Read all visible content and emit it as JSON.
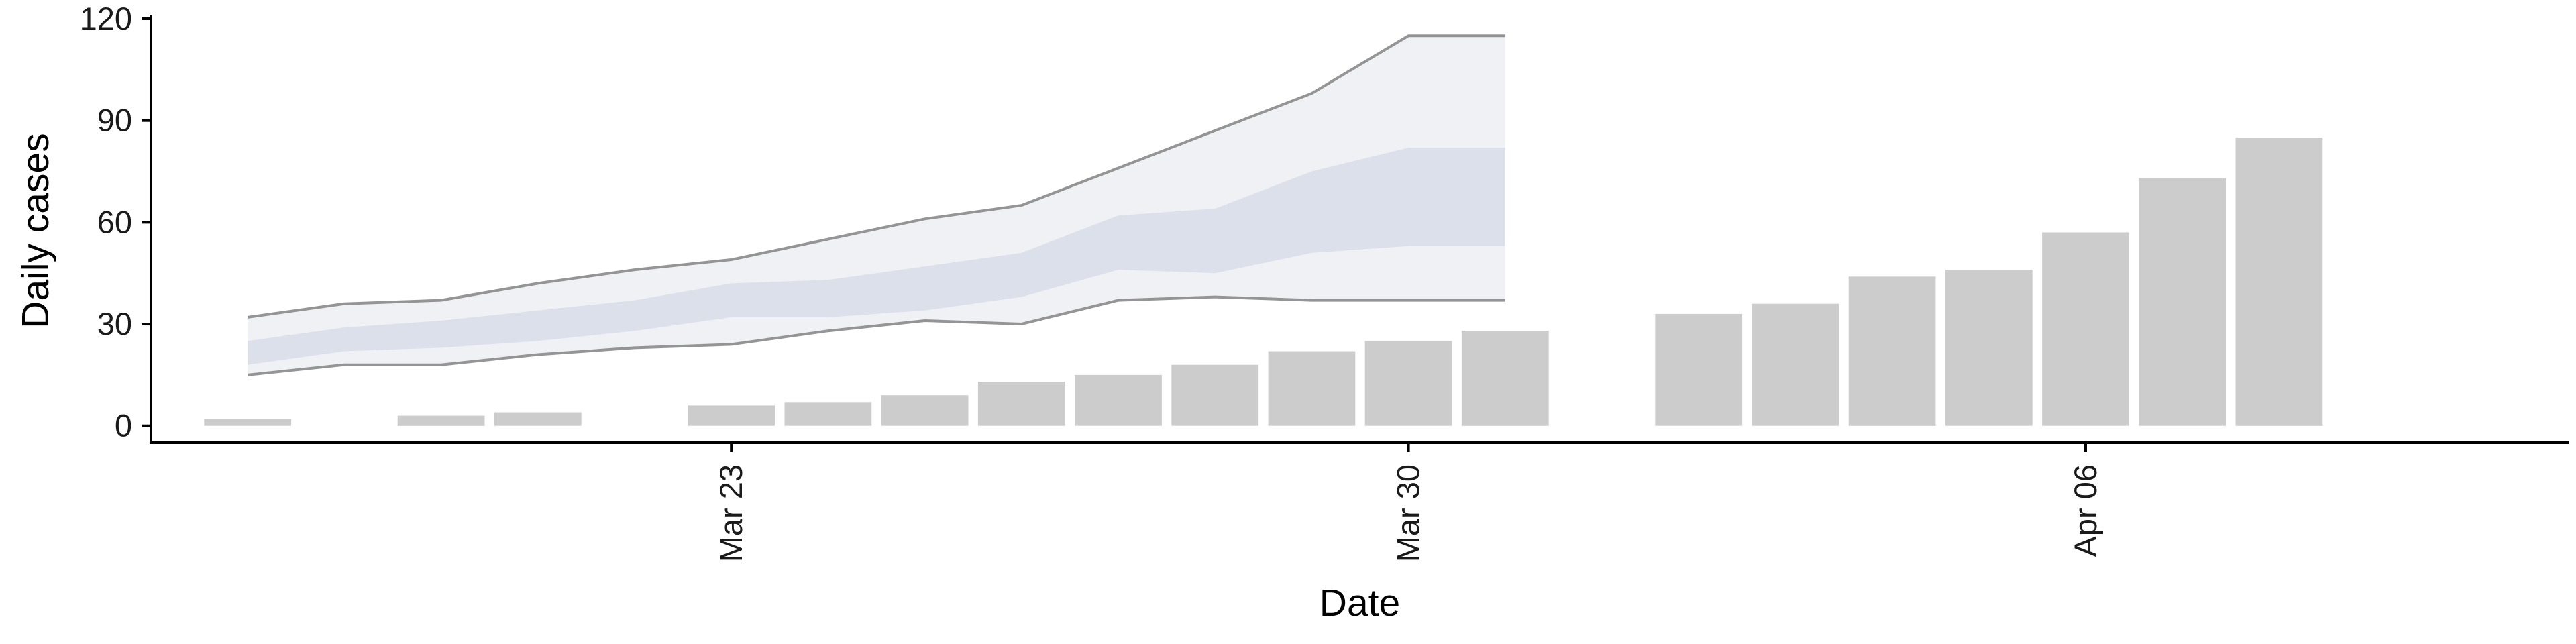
{
  "chart_data": {
    "type": "bar",
    "xlabel": "Date",
    "ylabel": "Daily cases",
    "ylim": [
      -5,
      120
    ],
    "yticks": [
      0,
      30,
      60,
      90,
      120
    ],
    "x_tick_labels": [
      {
        "date": "2020-03-23",
        "label": "Mar 23"
      },
      {
        "date": "2020-03-30",
        "label": "Mar 30"
      },
      {
        "date": "2020-04-06",
        "label": "Apr 06"
      }
    ],
    "xlim": [
      "2020-03-17",
      "2020-04-11"
    ],
    "grid": false,
    "legend": "none",
    "colors": {
      "bars": "#cccccc",
      "band_outer": "#e8eaf0",
      "band_inner": "#d6d9e6",
      "interval_line": "#8a8a8a"
    },
    "bars": [
      {
        "date": "2020-03-18",
        "value": 2
      },
      {
        "date": "2020-03-20",
        "value": 3
      },
      {
        "date": "2020-03-21",
        "value": 4
      },
      {
        "date": "2020-03-23",
        "value": 6
      },
      {
        "date": "2020-03-24",
        "value": 7
      },
      {
        "date": "2020-03-25",
        "value": 9
      },
      {
        "date": "2020-03-26",
        "value": 13
      },
      {
        "date": "2020-03-27",
        "value": 15
      },
      {
        "date": "2020-03-28",
        "value": 18
      },
      {
        "date": "2020-03-29",
        "value": 22
      },
      {
        "date": "2020-03-30",
        "value": 25
      },
      {
        "date": "2020-03-31",
        "value": 28
      },
      {
        "date": "2020-04-02",
        "value": 33
      },
      {
        "date": "2020-04-03",
        "value": 36
      },
      {
        "date": "2020-04-04",
        "value": 44
      },
      {
        "date": "2020-04-05",
        "value": 46
      },
      {
        "date": "2020-04-06",
        "value": 57
      },
      {
        "date": "2020-04-07",
        "value": 73
      },
      {
        "date": "2020-04-08",
        "value": 85
      }
    ],
    "estimate_band": {
      "dates": [
        "2020-03-18",
        "2020-03-19",
        "2020-03-20",
        "2020-03-21",
        "2020-03-22",
        "2020-03-23",
        "2020-03-24",
        "2020-03-25",
        "2020-03-26",
        "2020-03-27",
        "2020-03-28",
        "2020-03-29",
        "2020-03-30",
        "2020-03-31"
      ],
      "lower_90": [
        15,
        18,
        18,
        21,
        23,
        24,
        28,
        31,
        30,
        37,
        38,
        37,
        37,
        37
      ],
      "upper_90": [
        32,
        36,
        37,
        42,
        46,
        49,
        55,
        61,
        65,
        76,
        87,
        98,
        115,
        115
      ],
      "lower_50": [
        18,
        22,
        23,
        25,
        28,
        32,
        32,
        34,
        38,
        46,
        45,
        51,
        53,
        53
      ],
      "upper_50": [
        25,
        29,
        31,
        34,
        37,
        42,
        43,
        47,
        51,
        62,
        64,
        75,
        82,
        82
      ]
    }
  }
}
